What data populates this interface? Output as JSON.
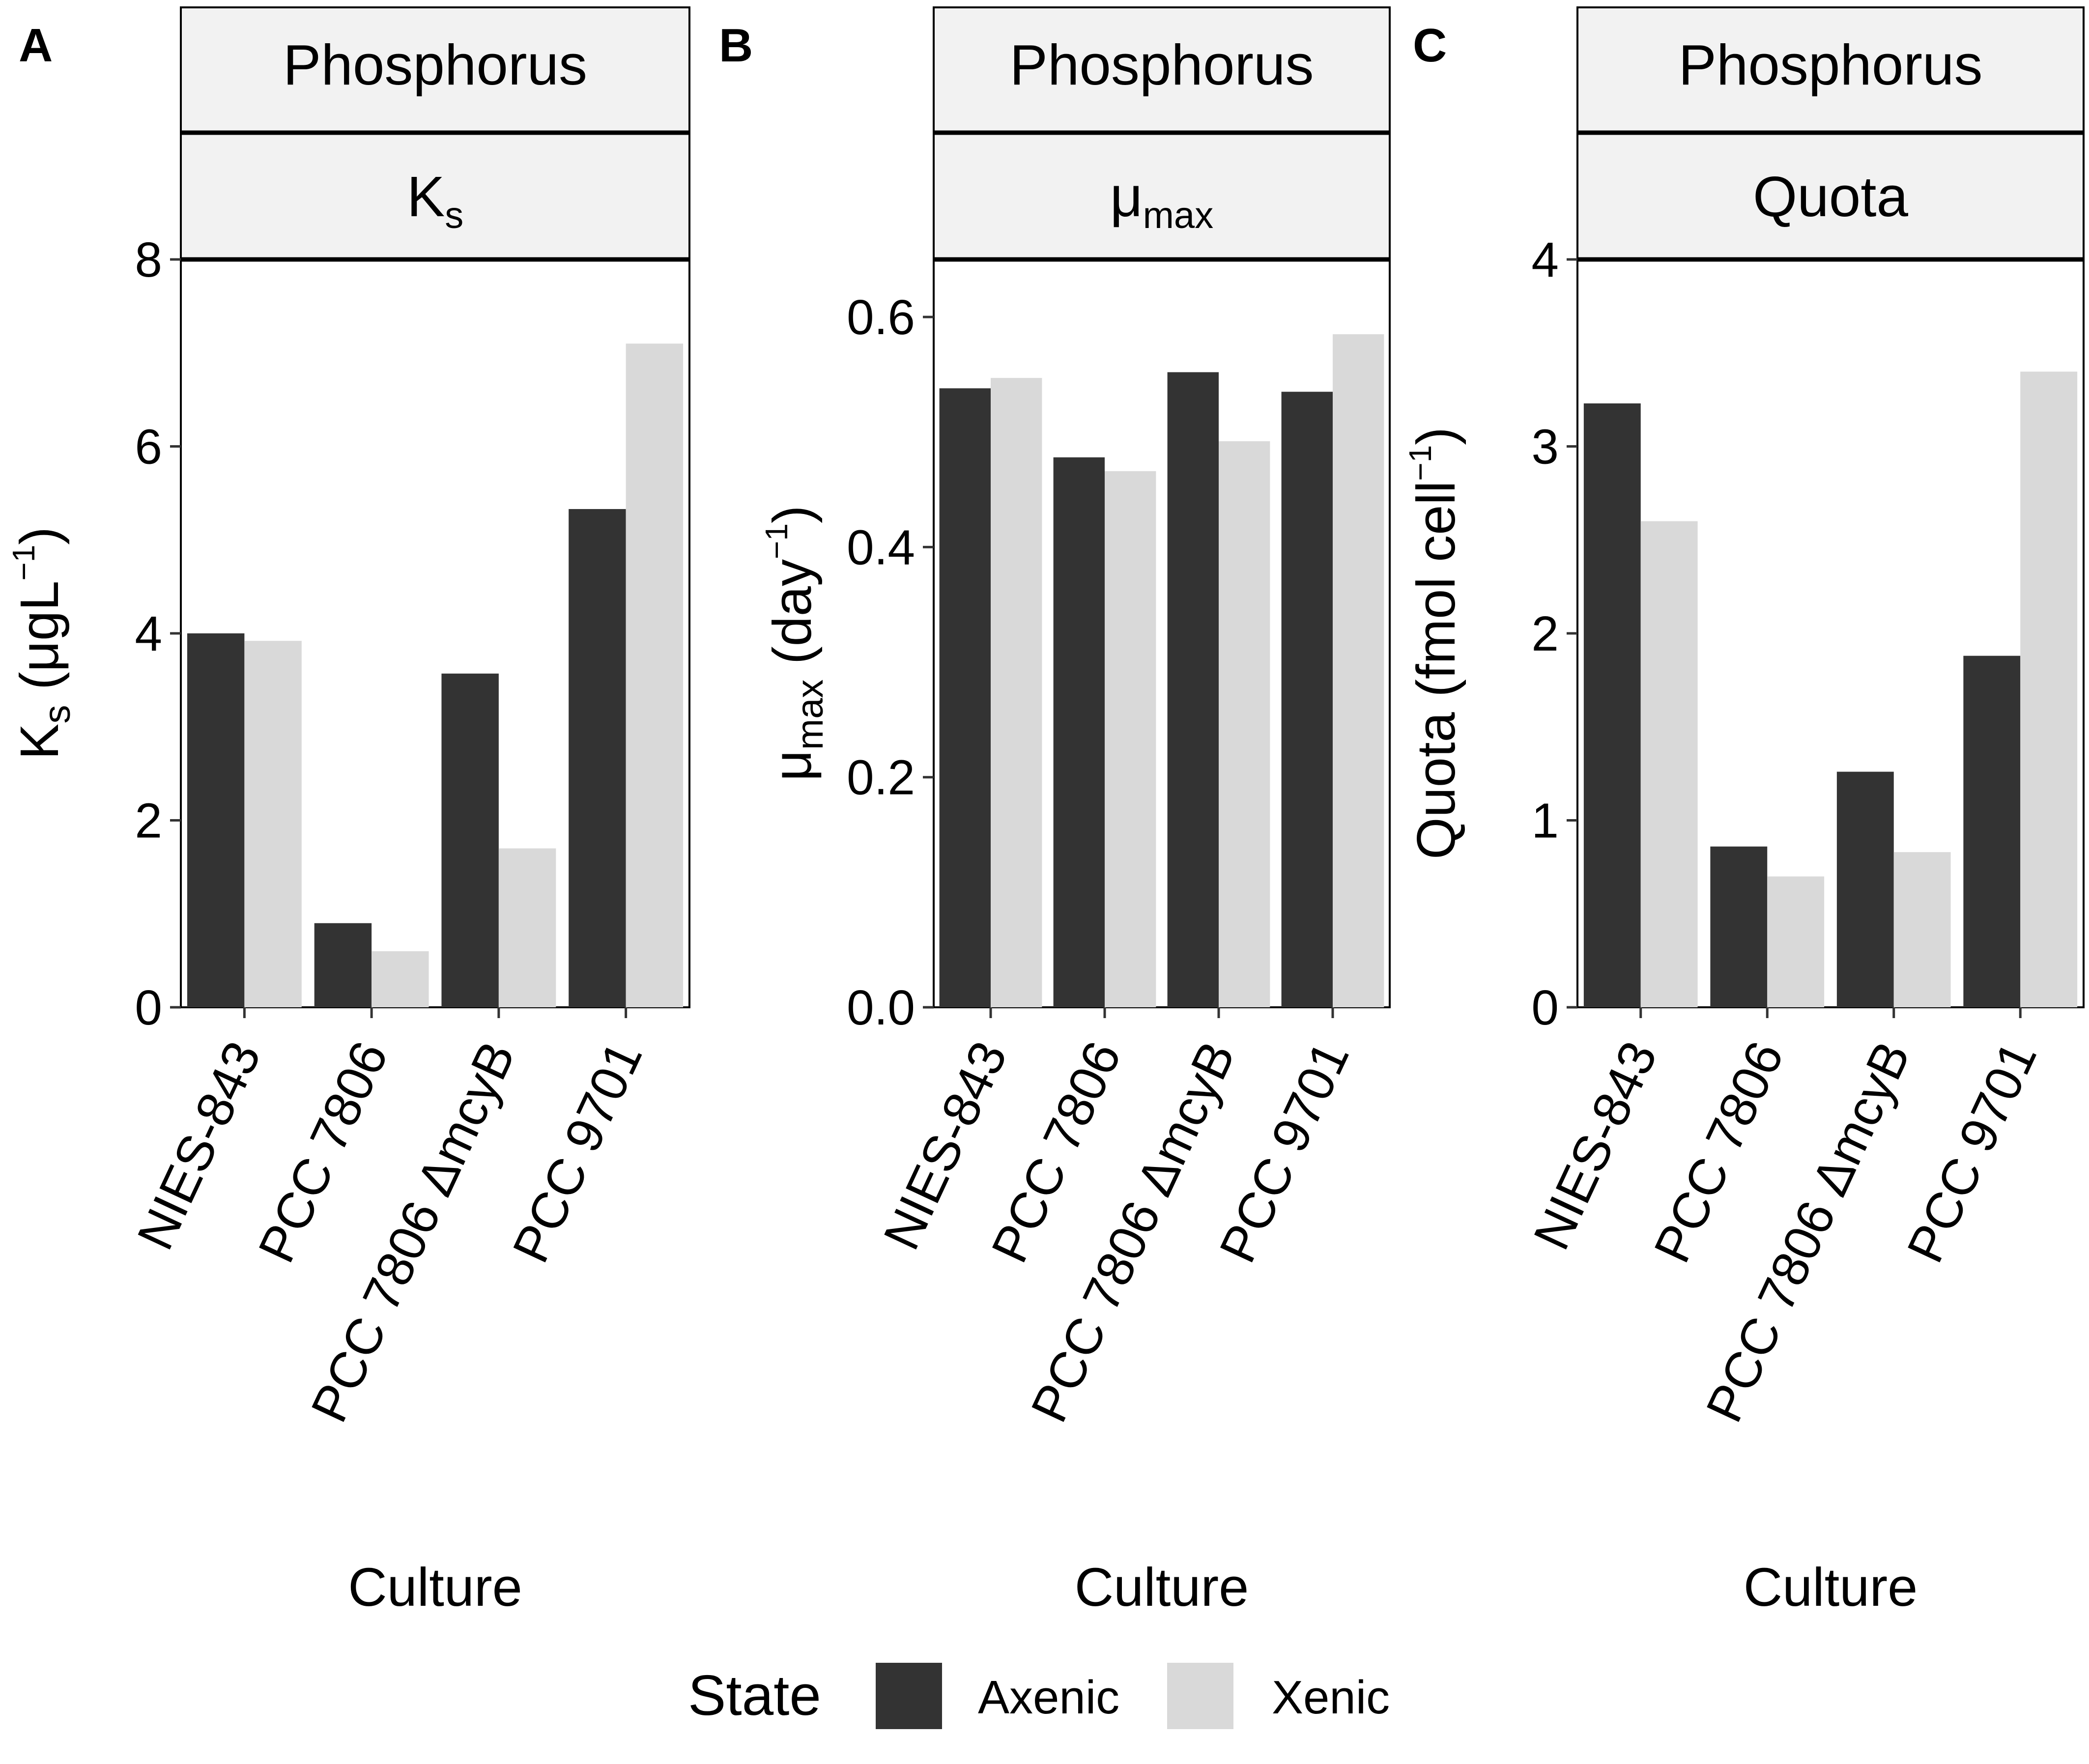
{
  "chart_data": [
    {
      "type": "bar",
      "panel": "A",
      "strip_top": "Phosphorus",
      "strip_param": {
        "main": "K",
        "sub": "s"
      },
      "ylabel": {
        "main": "K",
        "sub": "s",
        "unit": "μgL",
        "sup": "−1"
      },
      "xlabel": "Culture",
      "categories": [
        "NIES-843",
        "PCC 7806",
        "PCC 7806 ΔmcyB",
        "PCC 9701"
      ],
      "series": [
        {
          "name": "Axenic",
          "values": [
            4.0,
            0.9,
            3.57,
            5.33
          ]
        },
        {
          "name": "Xenic",
          "values": [
            3.92,
            0.6,
            1.7,
            7.1
          ]
        }
      ],
      "ylim": [
        0,
        8
      ],
      "yticks": [
        0,
        2,
        4,
        6,
        8
      ],
      "ytick_labels": [
        "0",
        "2",
        "4",
        "6",
        "8"
      ]
    },
    {
      "type": "bar",
      "panel": "B",
      "strip_top": "Phosphorus",
      "strip_param": {
        "main": "μ",
        "sub": "max"
      },
      "ylabel": {
        "main": "μ",
        "sub": "max",
        "unit": "day",
        "sup": "−1"
      },
      "xlabel": "Culture",
      "categories": [
        "NIES-843",
        "PCC 7806",
        "PCC 7806 ΔmcyB",
        "PCC 9701"
      ],
      "series": [
        {
          "name": "Axenic",
          "values": [
            0.538,
            0.478,
            0.552,
            0.535
          ]
        },
        {
          "name": "Xenic",
          "values": [
            0.547,
            0.466,
            0.492,
            0.585
          ]
        }
      ],
      "ylim": [
        0,
        0.65
      ],
      "yticks": [
        0,
        0.2,
        0.4,
        0.6
      ],
      "ytick_labels": [
        "0.0",
        "0.2",
        "0.4",
        "0.6"
      ]
    },
    {
      "type": "bar",
      "panel": "C",
      "strip_top": "Phosphorus",
      "strip_param": {
        "main": "Quota",
        "sub": ""
      },
      "ylabel": {
        "main": "Quota",
        "sub": "",
        "unit": "fmol cell",
        "sup": "−1"
      },
      "xlabel": "Culture",
      "categories": [
        "NIES-843",
        "PCC 7806",
        "PCC 7806 ΔmcyB",
        "PCC 9701"
      ],
      "series": [
        {
          "name": "Axenic",
          "values": [
            3.23,
            0.86,
            1.26,
            1.88
          ]
        },
        {
          "name": "Xenic",
          "values": [
            2.6,
            0.7,
            0.83,
            3.4
          ]
        }
      ],
      "ylim": [
        0,
        4
      ],
      "yticks": [
        0,
        1,
        2,
        3,
        4
      ],
      "ytick_labels": [
        "0",
        "1",
        "2",
        "3",
        "4"
      ]
    }
  ],
  "legend": {
    "title": "State",
    "position": "bottom",
    "items": [
      {
        "label": "Axenic",
        "color": "#333333"
      },
      {
        "label": "Xenic",
        "color": "#d9d9d9"
      }
    ]
  },
  "colors": {
    "axenic": "#333333",
    "xenic": "#d9d9d9",
    "strip_fill": "#f2f2f2"
  }
}
